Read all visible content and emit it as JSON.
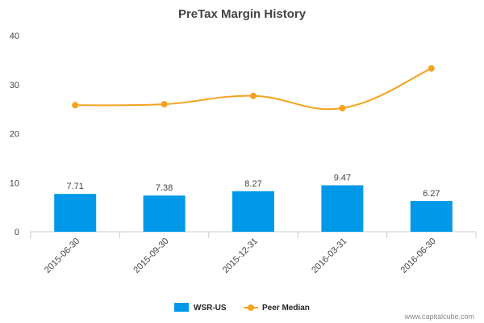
{
  "chart_data": {
    "type": "bar",
    "title": "PreTax Margin History",
    "xlabel": "",
    "ylabel": "",
    "ylim": [
      0,
      40
    ],
    "yticks": [
      "0",
      "10",
      "20",
      "30",
      "40"
    ],
    "categories": [
      "2015-06-30",
      "2015-09-30",
      "2015-12-31",
      "2016-03-31",
      "2016-06-30"
    ],
    "series": [
      {
        "name": "WSR-US",
        "type": "bar",
        "color": "#0098e8",
        "values": [
          7.71,
          7.38,
          8.27,
          9.47,
          6.27
        ],
        "labels": [
          "7.71",
          "7.38",
          "8.27",
          "9.47",
          "6.27"
        ]
      },
      {
        "name": "Peer Median",
        "type": "line",
        "color": "#f5a21e",
        "values": [
          25.8,
          26.0,
          27.7,
          25.2,
          33.3
        ]
      }
    ],
    "grid": false,
    "legend": "bottom-center"
  },
  "watermark": "www.capitalcube.com"
}
